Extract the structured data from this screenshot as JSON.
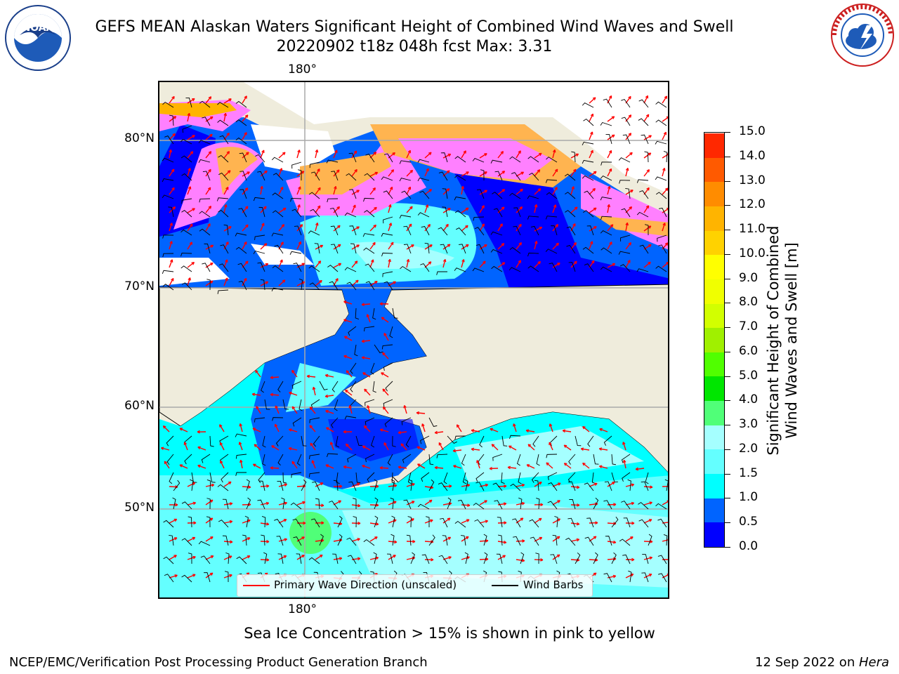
{
  "header": {
    "title_line1": "GEFS MEAN Alaskan Waters Significant Height of Combined Wind Waves and Swell",
    "title_line2": "20220902 t18z 048h fcst   Max: 3.31"
  },
  "logos": {
    "left": {
      "name": "NOAA",
      "text": "NOAA",
      "ring_text": "NATIONAL OCEANIC AND ATMOSPHERIC ADMINISTRATION · U.S. DEPARTMENT OF COMMERCE"
    },
    "right": {
      "name": "National Weather Service",
      "ring_text": "NATIONAL WEATHER SERVICE"
    }
  },
  "map": {
    "lon_labels_top": [
      "180°"
    ],
    "lon_labels_bottom": [
      "180°"
    ],
    "lat_labels": [
      "80°N",
      "70°N",
      "60°N",
      "50°N"
    ],
    "land_color": "#efecdc",
    "ice_note": "Sea Ice Concentration > 15% is shown in pink to yellow"
  },
  "legend": {
    "wave_label": "Primary Wave Direction (unscaled)",
    "wind_label": "Wind Barbs",
    "wave_color": "#ff0000",
    "wind_color": "#000000"
  },
  "colorbar": {
    "label_line1": "Significant Height of Combined",
    "label_line2": "Wind Waves and Swell [m]",
    "ticks": [
      "0.0",
      "0.5",
      "1.0",
      "1.5",
      "2.0",
      "3.0",
      "4.0",
      "5.0",
      "6.0",
      "7.0",
      "8.0",
      "9.0",
      "10.0",
      "11.0",
      "12.0",
      "13.0",
      "14.0",
      "15.0"
    ],
    "colors": [
      "#0000ff",
      "#0064ff",
      "#00ffff",
      "#64ffff",
      "#a5ffff",
      "#50ff78",
      "#00e600",
      "#50ff00",
      "#a0f000",
      "#d2ff00",
      "#f0ff00",
      "#ffff00",
      "#ffd200",
      "#ffb400",
      "#ff8c00",
      "#ff5a00",
      "#ff2800"
    ]
  },
  "footer": {
    "left": "NCEP/EMC/Verification Post Processing Product Generation Branch",
    "right_prefix": "12 Sep 2022 on ",
    "right_host": "Hera"
  }
}
